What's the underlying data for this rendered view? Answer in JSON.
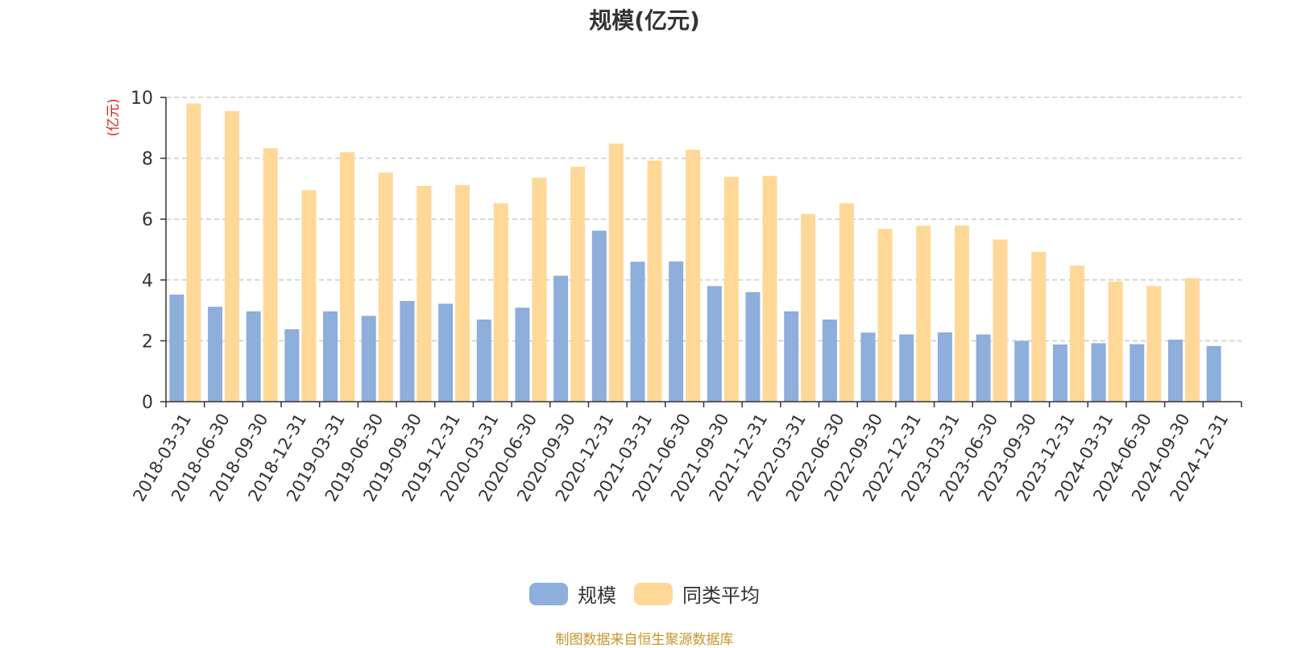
{
  "colors": {
    "series1": "#8eaedb",
    "series2": "#ffd898",
    "source": "#c8942a",
    "unit": "#e02020",
    "axis": "#333333",
    "grid": "#cccccc"
  },
  "legend": {
    "item1": "规模",
    "item2": "同类平均"
  },
  "source_text": "制图数据来自恒生聚源数据库",
  "chart_data": {
    "type": "bar",
    "title": "规模(亿元)",
    "ylabel": "(亿元)",
    "xlabel": "",
    "ylim": [
      0,
      10
    ],
    "yticks": [
      0,
      2,
      4,
      6,
      8,
      10
    ],
    "grid": true,
    "legend_position": "bottom-center",
    "categories": [
      "2018-03-31",
      "2018-06-30",
      "2018-09-30",
      "2018-12-31",
      "2019-03-31",
      "2019-06-30",
      "2019-09-30",
      "2019-12-31",
      "2020-03-31",
      "2020-06-30",
      "2020-09-30",
      "2020-12-31",
      "2021-03-31",
      "2021-06-30",
      "2021-09-30",
      "2021-12-31",
      "2022-03-31",
      "2022-06-30",
      "2022-09-30",
      "2022-12-31",
      "2023-03-31",
      "2023-06-30",
      "2023-09-30",
      "2023-12-31",
      "2024-03-31",
      "2024-06-30",
      "2024-09-30",
      "2024-12-31"
    ],
    "series": [
      {
        "name": "规模",
        "values": [
          3.52,
          3.12,
          2.97,
          2.38,
          2.97,
          2.82,
          3.31,
          3.22,
          2.7,
          3.09,
          4.14,
          5.62,
          4.6,
          4.61,
          3.8,
          3.6,
          2.97,
          2.7,
          2.27,
          2.21,
          2.28,
          2.21,
          2.0,
          1.88,
          1.92,
          1.89,
          2.04,
          1.83
        ]
      },
      {
        "name": "同类平均",
        "values": [
          9.8,
          9.55,
          8.33,
          6.95,
          8.2,
          7.53,
          7.09,
          7.12,
          6.52,
          7.36,
          7.72,
          8.48,
          7.92,
          8.28,
          7.39,
          7.42,
          6.17,
          6.52,
          5.68,
          5.78,
          5.79,
          5.33,
          4.92,
          4.47,
          3.95,
          3.8,
          4.06,
          null
        ]
      }
    ]
  }
}
